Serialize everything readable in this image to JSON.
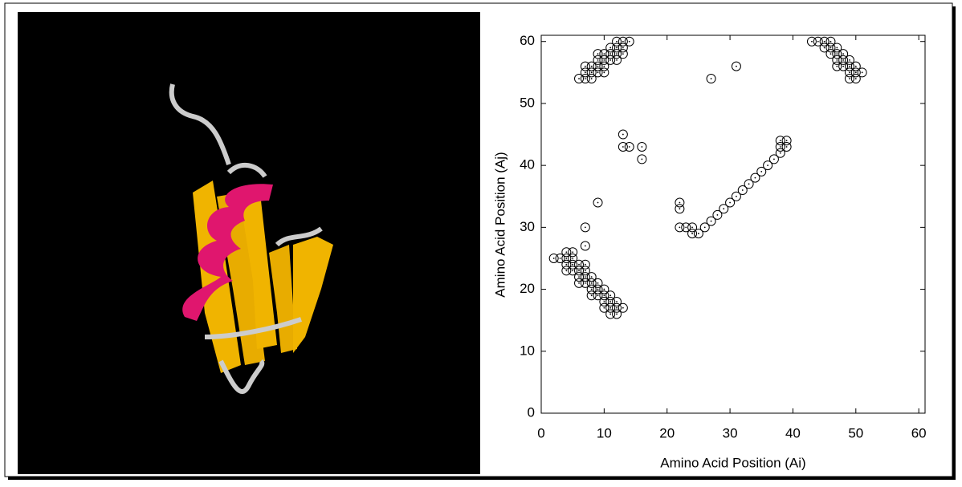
{
  "chart_data": {
    "type": "scatter",
    "xlabel": "Amino Acid Position (Ai)",
    "ylabel": "Amino Acid Position (Aj)",
    "color": "#000000",
    "xlim": [
      0,
      61
    ],
    "ylim": [
      0,
      61
    ],
    "xticks": [
      0,
      10,
      20,
      30,
      40,
      50,
      60
    ],
    "yticks": [
      0,
      10,
      20,
      30,
      40,
      50,
      60
    ],
    "x": [
      6,
      7,
      8,
      7,
      8,
      9,
      10,
      7,
      8,
      9,
      10,
      9,
      10,
      11,
      12,
      9,
      10,
      11,
      12,
      13,
      11,
      12,
      13,
      12,
      13,
      14,
      43,
      44,
      45,
      46,
      45,
      46,
      47,
      46,
      47,
      48,
      47,
      48,
      49,
      47,
      48,
      49,
      50,
      49,
      50,
      51,
      49,
      50,
      27,
      31,
      13,
      13,
      14,
      16,
      16,
      9,
      7,
      7,
      22,
      22,
      22,
      23,
      24,
      24,
      25,
      26,
      27,
      28,
      29,
      30,
      31,
      32,
      33,
      34,
      35,
      36,
      37,
      38,
      38,
      38,
      39,
      39,
      2,
      3,
      4,
      5,
      4,
      5,
      4,
      5,
      6,
      7,
      4,
      5,
      6,
      7,
      6,
      7,
      8,
      6,
      7,
      8,
      9,
      8,
      9,
      10,
      8,
      9,
      10,
      11,
      10,
      11,
      12,
      10,
      11,
      12,
      13,
      11,
      12
    ],
    "y": [
      54,
      54,
      54,
      55,
      55,
      55,
      55,
      56,
      56,
      56,
      56,
      57,
      57,
      57,
      57,
      58,
      58,
      58,
      58,
      58,
      59,
      59,
      59,
      60,
      60,
      60,
      60,
      60,
      60,
      60,
      59,
      59,
      59,
      58,
      58,
      58,
      57,
      57,
      57,
      56,
      56,
      56,
      56,
      55,
      55,
      55,
      54,
      54,
      54,
      56,
      45,
      43,
      43,
      43,
      41,
      34,
      30,
      27,
      34,
      33,
      30,
      30,
      30,
      29,
      29,
      30,
      31,
      32,
      33,
      34,
      35,
      36,
      37,
      38,
      39,
      40,
      41,
      42,
      43,
      44,
      43,
      44,
      25,
      25,
      25,
      25,
      26,
      26,
      24,
      24,
      24,
      24,
      23,
      23,
      23,
      23,
      22,
      22,
      22,
      21,
      21,
      21,
      21,
      20,
      20,
      20,
      19,
      19,
      19,
      19,
      18,
      18,
      18,
      17,
      17,
      17,
      17,
      16,
      16
    ]
  }
}
